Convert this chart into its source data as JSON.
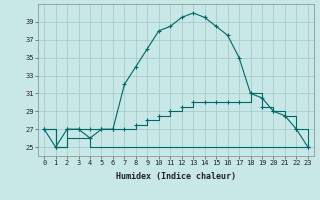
{
  "xlabel": "Humidex (Indice chaleur)",
  "background_color": "#c8e8e8",
  "grid_color": "#a8cccc",
  "line_color": "#006666",
  "x_values": [
    0,
    1,
    2,
    3,
    4,
    5,
    6,
    7,
    8,
    9,
    10,
    11,
    12,
    13,
    14,
    15,
    16,
    17,
    18,
    19,
    20,
    21,
    22,
    23
  ],
  "line1": [
    27,
    25,
    27,
    27,
    26,
    27,
    27,
    32,
    34,
    36,
    38,
    38.5,
    39.5,
    40,
    39.5,
    38.5,
    37.5,
    35,
    31,
    30.5,
    29,
    28.5,
    27,
    25
  ],
  "line2": [
    27,
    25,
    27,
    27,
    27,
    27,
    27,
    27,
    27.5,
    28,
    28.5,
    29,
    29.5,
    30,
    30,
    30,
    30,
    30,
    31,
    29.5,
    29,
    28.5,
    27,
    25
  ],
  "line3": [
    27,
    25,
    26,
    26,
    25,
    25,
    25,
    25,
    25,
    25,
    25,
    25,
    25,
    25,
    25,
    25,
    25,
    25,
    25,
    25,
    25,
    25,
    25,
    25
  ],
  "ylim": [
    24,
    41
  ],
  "xlim": [
    -0.5,
    23.5
  ],
  "yticks": [
    25,
    27,
    29,
    31,
    33,
    35,
    37,
    39
  ],
  "xticks": [
    0,
    1,
    2,
    3,
    4,
    5,
    6,
    7,
    8,
    9,
    10,
    11,
    12,
    13,
    14,
    15,
    16,
    17,
    18,
    19,
    20,
    21,
    22,
    23
  ]
}
